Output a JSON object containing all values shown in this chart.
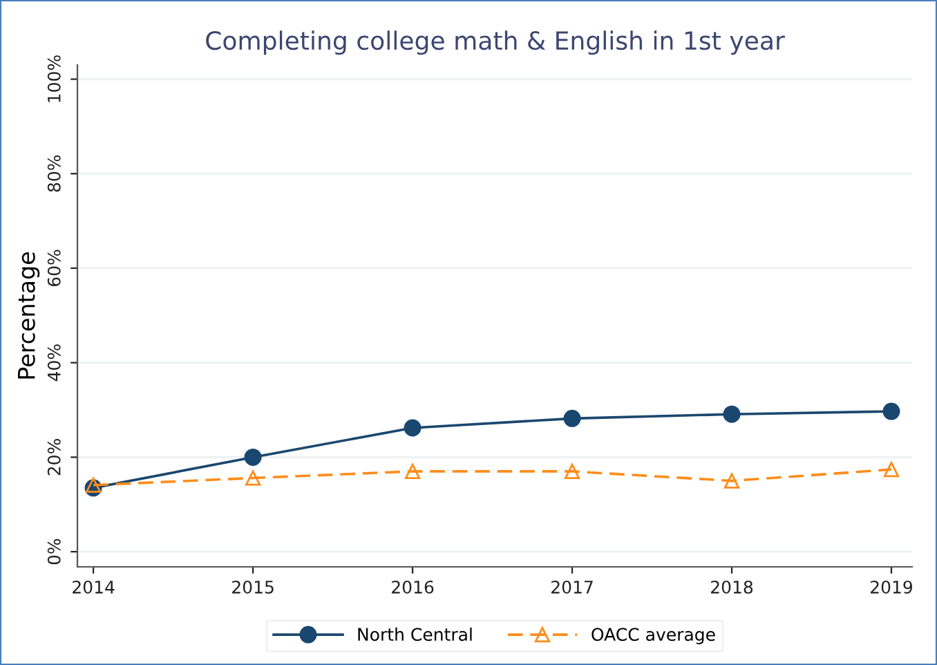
{
  "chart_data": {
    "type": "line",
    "title": "Completing college math & English in 1st year",
    "ylabel": "Percentage",
    "x": [
      2014,
      2015,
      2016,
      2017,
      2018,
      2019
    ],
    "series": [
      {
        "name": "North Central",
        "color": "#1a476f",
        "values": [
          13.5,
          20,
          26.2,
          28.2,
          29.1,
          29.7
        ],
        "marker": "circle",
        "line_style": "solid"
      },
      {
        "name": "OACC average",
        "color": "#ff8c1a",
        "values": [
          14.1,
          15.6,
          17,
          17,
          15,
          17.4
        ],
        "marker": "triangle",
        "line_style": "dashed"
      }
    ],
    "xlim": [
      2013.9,
      2019.13
    ],
    "ylim": [
      -3.2,
      103
    ],
    "xticks": [
      2014,
      2015,
      2016,
      2017,
      2018,
      2019
    ],
    "yticks": [
      {
        "value": 0,
        "label": "0%"
      },
      {
        "value": 20,
        "label": "20%"
      },
      {
        "value": 40,
        "label": "40%"
      },
      {
        "value": 60,
        "label": "60%"
      },
      {
        "value": 80,
        "label": "80%"
      },
      {
        "value": 100,
        "label": "100%"
      }
    ],
    "grid": "y",
    "legend": "bottom"
  }
}
